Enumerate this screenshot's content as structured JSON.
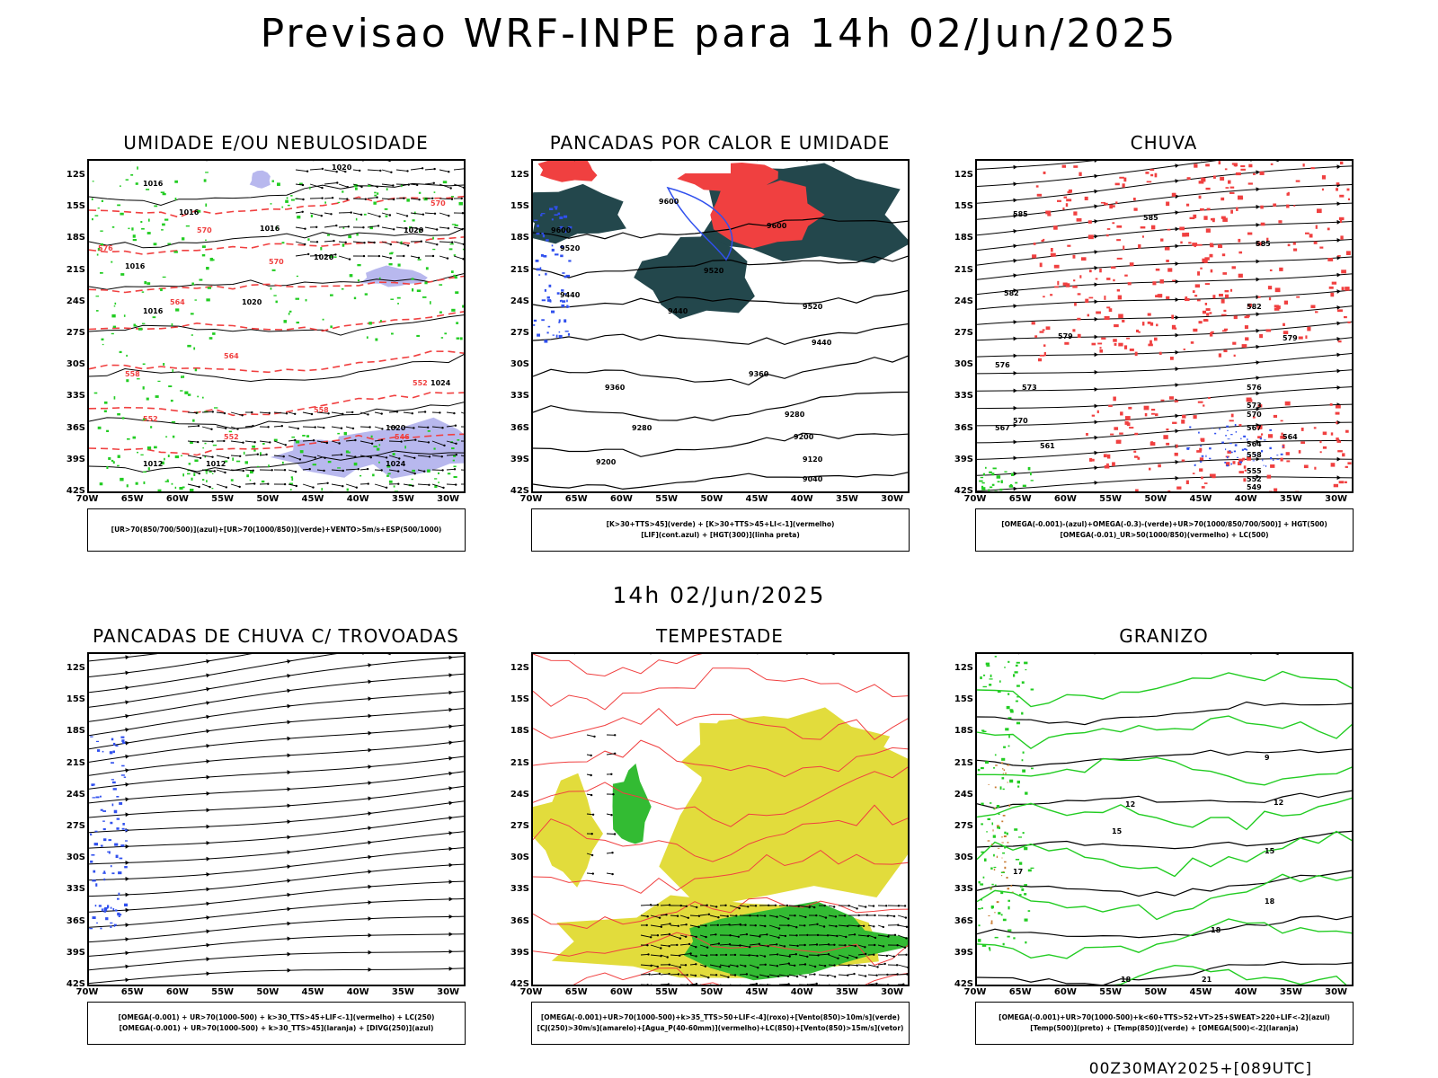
{
  "main_title": "Previsao WRF-INPE  para 14h 02/Jun/2025",
  "mid_title": "14h 02/Jun/2025",
  "footer": "00Z30MAY2025+[089UTC]",
  "lat_labels": [
    "12S",
    "15S",
    "18S",
    "21S",
    "24S",
    "27S",
    "30S",
    "33S",
    "36S",
    "39S",
    "42S"
  ],
  "lon_labels": [
    "70W",
    "65W",
    "60W",
    "55W",
    "50W",
    "45W",
    "40W",
    "35W",
    "30W"
  ],
  "panels": [
    {
      "title": "UMIDADE E/OU NEBULOSIDADE",
      "legend": [
        "[UR>70(850/700/500)](azul)+[UR>70(1000/850)](verde)+VENTO>5m/s+ESP(500/1000)"
      ],
      "labels": [
        "1016",
        "1016",
        "1016",
        "1016",
        "1016",
        "1020",
        "1020",
        "1020",
        "1020",
        "1020",
        "1024",
        "1024",
        "1012",
        "1012",
        "570",
        "570",
        "570",
        "564",
        "564",
        "558",
        "558",
        "552",
        "552",
        "552",
        "546",
        "576"
      ]
    },
    {
      "title": "PANCADAS POR CALOR E UMIDADE",
      "legend": [
        "[K>30+TTS>45](verde) + [K>30+TTS>45+LI<-1](vermelho)",
        "[LIF](cont.azul) + [HGT(300)](linha preta)"
      ],
      "labels": [
        "9600",
        "9600",
        "9600",
        "9520",
        "9520",
        "9520",
        "9440",
        "9440",
        "9440",
        "9360",
        "9360",
        "9280",
        "9280",
        "9200",
        "9200",
        "9120",
        "9040"
      ]
    },
    {
      "title": "CHUVA",
      "legend": [
        "[OMEGA(-0.001)-(azul)+OMEGA(-0.3)-(verde)+UR>70(1000/850/700/500)] + HGT(500)",
        "[OMEGA(-0.01)_UR>50(1000/850)(vermelho) + LC(500)"
      ],
      "labels": [
        "585",
        "585",
        "585",
        "582",
        "582",
        "579",
        "579",
        "576",
        "576",
        "573",
        "573",
        "570",
        "570",
        "567",
        "567",
        "564",
        "564",
        "561",
        "558",
        "555",
        "552",
        "549"
      ]
    },
    {
      "title": "PANCADAS DE CHUVA C/ TROVOADAS",
      "legend": [
        "[OMEGA(-0.001) + UR>70(1000-500) + k>30_TTS>45+LIF<-1](vermelho) + LC(250)",
        "[OMEGA(-0.001) + UR>70(1000-500) + k>30_TTS>45](laranja) + [DIVG(250)](azul)"
      ],
      "labels": []
    },
    {
      "title": "TEMPESTADE",
      "legend": [
        "[OMEGA(-0.001)+UR>70(1000-500)+k>35_TTS>50+LIF<-4](roxo)+[Vento(850)>10m/s](verde)",
        "[CJ(250)>30m/s](amarelo)+[Agua_P(40-60mm)](vermelho)+LC(850)+[Vento(850)>15m/s](vetor)"
      ],
      "labels": []
    },
    {
      "title": "GRANIZO",
      "legend": [
        "[OMEGA(-0.001)+UR>70(1000-500)+k<60+TTS>52+VT>25+SWEAT>220+LIF<-2](azul)",
        "[Temp(500)](preto) + [Temp(850)](verde) + [OMEGA(500)<-2](laranja)"
      ],
      "labels": [
        "9",
        "12",
        "12",
        "15",
        "15",
        "18",
        "18",
        "18",
        "21",
        "17"
      ]
    }
  ],
  "colors": {
    "red": "#f04040",
    "green": "#22cc22",
    "blue": "#3050ee",
    "lavender": "#b8b8ee",
    "darkteal": "#23474c",
    "yellow": "#e2dc3c",
    "lightred": "#ff5050"
  }
}
